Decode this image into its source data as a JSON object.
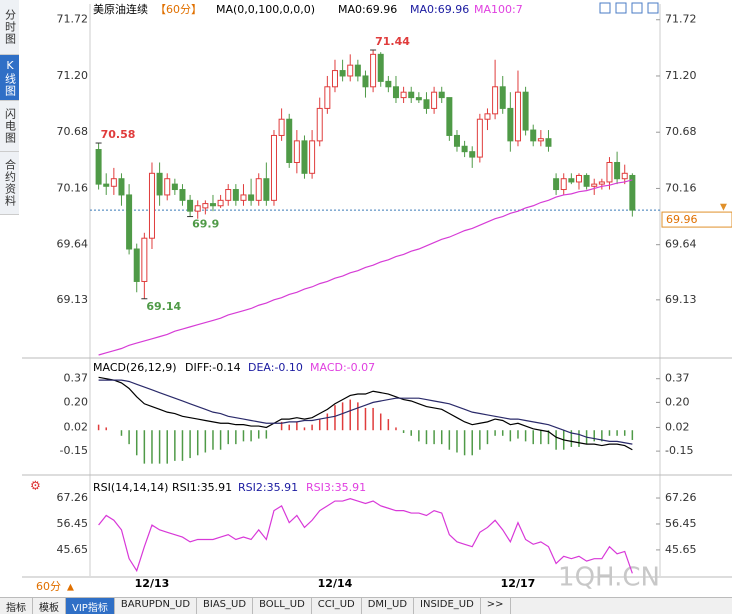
{
  "sidebar": [
    "分时图",
    "K线图",
    "闪电图",
    "合约资料"
  ],
  "period": "60分",
  "tabs": [
    "指标",
    "模板",
    "VIP指标",
    "BARUPDN_UD",
    "BIAS_UD",
    "BOLL_UD",
    "CCI_UD",
    "DMI_UD",
    "INSIDE_UD",
    ">>"
  ],
  "watermark": "1QH.CN",
  "chart_data": [
    {
      "type": "candlestick",
      "title": "美原油连续",
      "subtitle": "【60分】",
      "legend": [
        "MA(0,0,100,0,0,0)",
        "MA0:69.96",
        "MA0:69.96",
        "MA100:7"
      ],
      "legend_colors": [
        "#000000",
        "#000000",
        "#1a1aa0",
        "#e040e0"
      ],
      "up_color": "#e03c3c",
      "down_color": "#4f9a47",
      "ma_color": "#d63cd6",
      "categories": [
        null,
        null,
        null,
        null,
        null,
        null,
        null,
        "12/13",
        null,
        null,
        null,
        null,
        null,
        null,
        null,
        null,
        null,
        null,
        null,
        null,
        null,
        null,
        null,
        null,
        null,
        null,
        null,
        null,
        null,
        null,
        null,
        "12/14",
        null,
        null,
        null,
        null,
        null,
        null,
        null,
        null,
        null,
        null,
        null,
        null,
        null,
        null,
        null,
        null,
        null,
        null,
        null,
        null,
        null,
        null,
        null,
        "12/17",
        null,
        null,
        null,
        null,
        null,
        null,
        null,
        null,
        null,
        null,
        null,
        null,
        null,
        null,
        null
      ],
      "ohlc": [
        [
          70.52,
          70.58,
          70.15,
          70.2
        ],
        [
          70.2,
          70.3,
          70.1,
          70.18
        ],
        [
          70.18,
          70.35,
          70.1,
          70.25
        ],
        [
          70.25,
          70.3,
          70.0,
          70.1
        ],
        [
          70.1,
          70.2,
          69.55,
          69.6
        ],
        [
          69.6,
          69.65,
          69.2,
          69.3
        ],
        [
          69.3,
          69.75,
          69.14,
          69.7
        ],
        [
          69.7,
          70.4,
          69.6,
          70.3
        ],
        [
          70.3,
          70.4,
          70.0,
          70.1
        ],
        [
          70.1,
          70.3,
          70.05,
          70.25
        ],
        [
          70.2,
          70.25,
          70.1,
          70.15
        ],
        [
          70.15,
          70.2,
          70.0,
          70.05
        ],
        [
          70.05,
          70.1,
          69.9,
          69.95
        ],
        [
          69.95,
          70.05,
          69.88,
          70.0
        ],
        [
          69.98,
          70.05,
          69.92,
          70.02
        ],
        [
          70.02,
          70.1,
          69.95,
          70.0
        ],
        [
          70.0,
          70.1,
          69.98,
          70.05
        ],
        [
          70.05,
          70.2,
          70.0,
          70.15
        ],
        [
          70.15,
          70.2,
          70.0,
          70.05
        ],
        [
          70.05,
          70.2,
          70.0,
          70.1
        ],
        [
          70.1,
          70.25,
          70.0,
          70.05
        ],
        [
          70.05,
          70.3,
          70.0,
          70.25
        ],
        [
          70.25,
          70.4,
          70.0,
          70.05
        ],
        [
          70.05,
          70.7,
          70.0,
          70.65
        ],
        [
          70.65,
          70.9,
          70.6,
          70.8
        ],
        [
          70.8,
          70.85,
          70.35,
          70.4
        ],
        [
          70.4,
          70.7,
          70.3,
          70.6
        ],
        [
          70.6,
          70.65,
          70.25,
          70.3
        ],
        [
          70.3,
          70.7,
          70.25,
          70.6
        ],
        [
          70.6,
          71.0,
          70.55,
          70.9
        ],
        [
          70.9,
          71.2,
          70.85,
          71.1
        ],
        [
          71.1,
          71.35,
          71.05,
          71.25
        ],
        [
          71.25,
          71.35,
          71.15,
          71.2
        ],
        [
          71.2,
          71.4,
          71.15,
          71.3
        ],
        [
          71.3,
          71.35,
          71.15,
          71.2
        ],
        [
          71.2,
          71.25,
          71.0,
          71.1
        ],
        [
          71.1,
          71.44,
          71.05,
          71.4
        ],
        [
          71.4,
          71.42,
          71.1,
          71.15
        ],
        [
          71.15,
          71.2,
          71.05,
          71.1
        ],
        [
          71.1,
          71.2,
          70.95,
          71.0
        ],
        [
          71.0,
          71.1,
          70.95,
          71.05
        ],
        [
          71.05,
          71.1,
          70.95,
          71.0
        ],
        [
          71.0,
          71.05,
          70.95,
          70.98
        ],
        [
          70.98,
          71.05,
          70.85,
          70.9
        ],
        [
          70.9,
          71.1,
          70.85,
          71.05
        ],
        [
          71.05,
          71.1,
          70.95,
          71.0
        ],
        [
          71.0,
          71.0,
          70.6,
          70.65
        ],
        [
          70.65,
          70.7,
          70.5,
          70.55
        ],
        [
          70.55,
          70.6,
          70.45,
          70.5
        ],
        [
          70.5,
          70.55,
          70.35,
          70.45
        ],
        [
          70.45,
          70.85,
          70.4,
          70.8
        ],
        [
          70.8,
          70.9,
          70.7,
          70.85
        ],
        [
          70.85,
          71.35,
          70.8,
          71.1
        ],
        [
          71.1,
          71.2,
          70.85,
          70.9
        ],
        [
          70.9,
          71.05,
          70.5,
          70.6
        ],
        [
          70.6,
          71.25,
          70.55,
          71.05
        ],
        [
          71.05,
          71.1,
          70.65,
          70.7
        ],
        [
          70.7,
          70.75,
          70.55,
          70.6
        ],
        [
          70.6,
          70.7,
          70.55,
          70.62
        ],
        [
          70.62,
          70.7,
          70.5,
          70.55
        ],
        [
          70.25,
          70.3,
          70.1,
          70.15
        ],
        [
          70.15,
          70.3,
          70.1,
          70.25
        ],
        [
          70.25,
          70.3,
          70.2,
          70.22
        ],
        [
          70.22,
          70.3,
          70.15,
          70.28
        ],
        [
          70.28,
          70.3,
          70.15,
          70.18
        ],
        [
          70.18,
          70.25,
          70.1,
          70.2
        ],
        [
          70.2,
          70.25,
          70.15,
          70.22
        ],
        [
          70.22,
          70.45,
          70.15,
          70.4
        ],
        [
          70.4,
          70.5,
          70.2,
          70.25
        ],
        [
          70.25,
          70.38,
          70.2,
          70.3
        ],
        [
          70.28,
          70.3,
          69.9,
          69.96
        ]
      ],
      "ma100": [
        68.62,
        68.64,
        68.66,
        68.68,
        68.71,
        68.73,
        68.75,
        68.77,
        68.79,
        68.81,
        68.84,
        68.86,
        68.88,
        68.9,
        68.92,
        68.94,
        68.96,
        68.99,
        69.01,
        69.03,
        69.05,
        69.08,
        69.1,
        69.13,
        69.15,
        69.18,
        69.2,
        69.23,
        69.25,
        69.28,
        69.3,
        69.33,
        69.35,
        69.38,
        69.4,
        69.43,
        69.45,
        69.48,
        69.5,
        69.53,
        69.55,
        69.58,
        69.6,
        69.63,
        69.66,
        69.69,
        69.71,
        69.74,
        69.77,
        69.79,
        69.82,
        69.85,
        69.88,
        69.9,
        69.93,
        69.95,
        69.98,
        70.0,
        70.03,
        70.05,
        70.08,
        70.1,
        70.11,
        70.13,
        70.14,
        70.16,
        70.18,
        70.19,
        70.21,
        70.22,
        70.24
      ],
      "annotations": [
        {
          "label": "70.58",
          "value": 70.58,
          "color": "#e03c3c"
        },
        {
          "label": "71.44",
          "value": 71.44,
          "color": "#e03c3c"
        },
        {
          "label": "69.14",
          "value": 69.14,
          "color": "#4f9a47"
        },
        {
          "label": "69.9",
          "value": 69.9,
          "color": "#4f9a47"
        }
      ],
      "last": 69.96,
      "ylim": [
        68.62,
        71.81
      ],
      "yticks": [
        71.72,
        {
          "value": 71.2,
          "label": "71.20"
        },
        70.68,
        70.16,
        69.64,
        69.13
      ]
    },
    {
      "type": "macd",
      "legend": [
        "MACD(26,12,9)",
        "DIFF:-0.14",
        "DEA:-0.10",
        "MACD:-0.07"
      ],
      "legend_colors": [
        "#000000",
        "#000000",
        "#1a1aa0",
        "#e040e0"
      ],
      "series": [
        {
          "name": "DIFF",
          "color": "#000000",
          "values": [
            0.38,
            0.37,
            0.36,
            0.34,
            0.3,
            0.24,
            0.19,
            0.17,
            0.15,
            0.13,
            0.12,
            0.1,
            0.09,
            0.08,
            0.07,
            0.06,
            0.05,
            0.05,
            0.04,
            0.04,
            0.03,
            0.03,
            0.02,
            0.05,
            0.08,
            0.08,
            0.09,
            0.08,
            0.09,
            0.12,
            0.15,
            0.19,
            0.22,
            0.25,
            0.26,
            0.26,
            0.28,
            0.27,
            0.26,
            0.24,
            0.22,
            0.21,
            0.19,
            0.17,
            0.16,
            0.15,
            0.12,
            0.09,
            0.06,
            0.04,
            0.05,
            0.06,
            0.08,
            0.07,
            0.04,
            0.05,
            0.03,
            0.01,
            0.0,
            -0.01,
            -0.05,
            -0.07,
            -0.08,
            -0.09,
            -0.1,
            -0.1,
            -0.11,
            -0.1,
            -0.1,
            -0.11,
            -0.14
          ]
        },
        {
          "name": "DEA",
          "color": "#2a2a6a",
          "values": [
            0.36,
            0.36,
            0.36,
            0.36,
            0.35,
            0.33,
            0.31,
            0.29,
            0.27,
            0.25,
            0.23,
            0.21,
            0.19,
            0.17,
            0.15,
            0.13,
            0.12,
            0.1,
            0.09,
            0.08,
            0.07,
            0.06,
            0.05,
            0.05,
            0.05,
            0.06,
            0.06,
            0.07,
            0.07,
            0.08,
            0.09,
            0.1,
            0.12,
            0.14,
            0.16,
            0.18,
            0.2,
            0.21,
            0.22,
            0.23,
            0.23,
            0.23,
            0.23,
            0.22,
            0.21,
            0.2,
            0.19,
            0.17,
            0.15,
            0.13,
            0.12,
            0.11,
            0.1,
            0.09,
            0.08,
            0.08,
            0.07,
            0.06,
            0.05,
            0.04,
            0.02,
            0.0,
            -0.02,
            -0.03,
            -0.05,
            -0.06,
            -0.07,
            -0.08,
            -0.08,
            -0.09,
            -0.1
          ]
        }
      ],
      "histogram": [
        0.04,
        0.02,
        0,
        -0.04,
        -0.1,
        -0.18,
        -0.24,
        -0.24,
        -0.24,
        -0.24,
        -0.22,
        -0.22,
        -0.2,
        -0.18,
        -0.16,
        -0.14,
        -0.14,
        -0.1,
        -0.1,
        -0.08,
        -0.08,
        -0.06,
        -0.06,
        0,
        0.06,
        0.04,
        0.06,
        0.02,
        0.04,
        0.08,
        0.12,
        0.18,
        0.2,
        0.22,
        0.2,
        0.16,
        0.16,
        0.12,
        0.08,
        0.02,
        -0.02,
        -0.04,
        -0.08,
        -0.1,
        -0.1,
        -0.1,
        -0.14,
        -0.16,
        -0.18,
        -0.18,
        -0.14,
        -0.1,
        -0.04,
        -0.04,
        -0.08,
        -0.06,
        -0.08,
        -0.1,
        -0.1,
        -0.1,
        -0.14,
        -0.14,
        -0.12,
        -0.12,
        -0.1,
        -0.08,
        -0.08,
        -0.04,
        -0.04,
        -0.04,
        -0.07
      ],
      "up_color": "#e03c3c",
      "down_color": "#4f9a47",
      "ylim": [
        -0.3,
        0.49
      ],
      "yticks": [
        0.37,
        {
          "value": 0.2,
          "label": "0.20"
        },
        0.02,
        -0.15
      ]
    },
    {
      "type": "line",
      "legend": [
        "RSI(14,14,14)",
        "RSI1:35.91",
        "RSI2:35.91",
        "RSI3:35.91"
      ],
      "legend_colors": [
        "#000000",
        "#000000",
        "#1a1aa0",
        "#e040e0"
      ],
      "series": [
        {
          "name": "RSI",
          "color": "#d838d8",
          "values": [
            56,
            60,
            58,
            54,
            42,
            37,
            47,
            56,
            54,
            53,
            52,
            51,
            49,
            50,
            50,
            50,
            51,
            52,
            50,
            51,
            50,
            54,
            50,
            62,
            64,
            57,
            60,
            55,
            58,
            62,
            64,
            66,
            66,
            67,
            66,
            65,
            66,
            64,
            63,
            62,
            62,
            61,
            61,
            60,
            62,
            61,
            52,
            49,
            48,
            47,
            53,
            55,
            58,
            54,
            49,
            57,
            50,
            48,
            49,
            47,
            40,
            43,
            42,
            43,
            41,
            42,
            42,
            47,
            44,
            45,
            35.91
          ]
        }
      ],
      "ylim": [
        35.2,
        75.6
      ],
      "yticks": [
        67.26,
        56.45,
        45.65
      ]
    }
  ]
}
